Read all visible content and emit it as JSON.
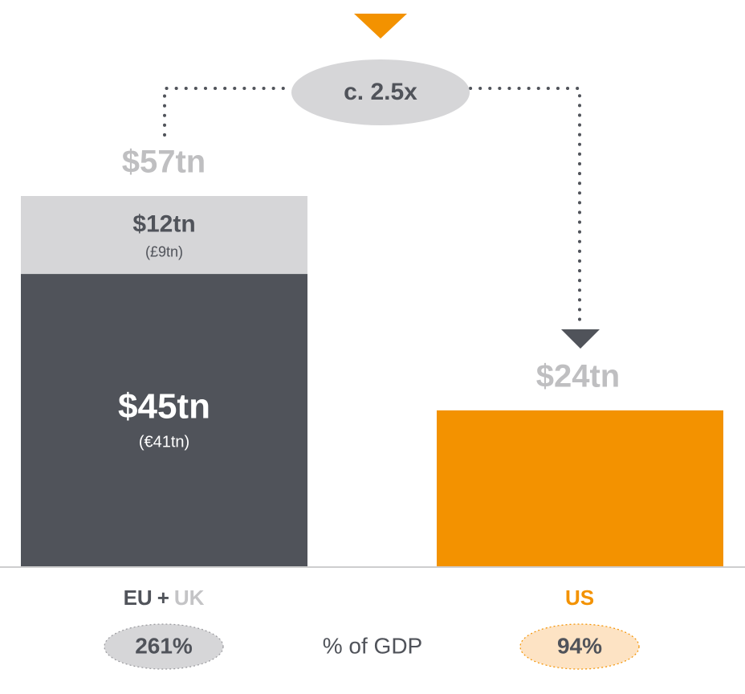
{
  "chart_data": {
    "type": "bar",
    "series": [
      {
        "name": "EU",
        "color": "#50535a",
        "values": [
          45,
          null
        ],
        "value_labels": [
          "$45tn",
          null
        ],
        "local_labels": [
          "(€41tn)",
          null
        ]
      },
      {
        "name": "UK",
        "color": "#d6d6d8",
        "values": [
          12,
          null
        ],
        "value_labels": [
          "$12tn",
          null
        ],
        "local_labels": [
          "(£9tn)",
          null
        ]
      },
      {
        "name": "US",
        "color": "#f39200",
        "values": [
          null,
          24
        ]
      }
    ],
    "category_joiner": "+",
    "totals": [
      57,
      24
    ],
    "total_labels": [
      "$57tn",
      "$24tn"
    ],
    "ratio_label": "c. 2.5x",
    "gdp_label": "% of GDP",
    "gdp_share": [
      "261%",
      "94%"
    ],
    "ylim": [
      0,
      57
    ]
  }
}
